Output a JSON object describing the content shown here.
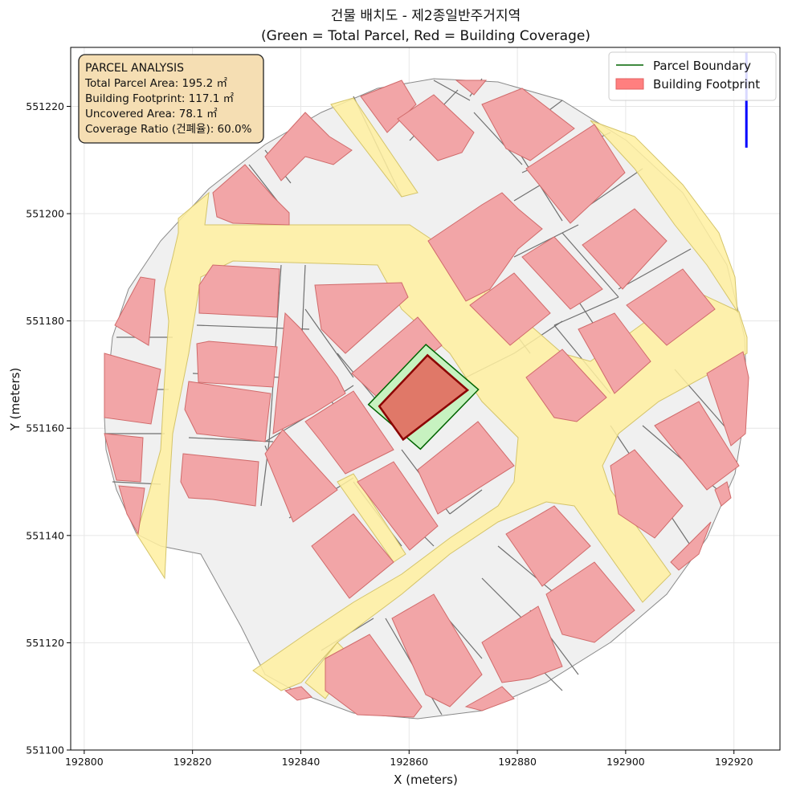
{
  "chart_data": {
    "type": "map",
    "title": "건물 배치도 - 제2종일반주거지역",
    "subtitle": "(Green = Total Parcel, Red = Building Coverage)",
    "xlabel": "X (meters)",
    "ylabel": "Y (meters)",
    "xlim": [
      192797.5,
      192928.5
    ],
    "ylim": [
      551100,
      551231
    ],
    "x_ticks": [
      192800,
      192820,
      192840,
      192860,
      192880,
      192900,
      192920
    ],
    "y_ticks": [
      551100,
      551120,
      551140,
      551160,
      551180,
      551200,
      551220
    ],
    "grid": true,
    "legend_position": "top-right",
    "legend": [
      {
        "label": "Parcel Boundary",
        "color": "#006400",
        "kind": "line"
      },
      {
        "label": "Building Footprint",
        "color": "#ff7f7f",
        "kind": "patch"
      }
    ],
    "info_box": {
      "title": "PARCEL ANALYSIS",
      "lines": [
        "Total Parcel Area: 195.2 ㎡",
        "Building Footprint: 117.1 ㎡",
        "Uncovered Area: 78.1 ㎡",
        "Coverage Ratio (건폐율): 60.0%"
      ]
    },
    "target_parcel": [
      [
        192852.5,
        551164.4
      ],
      [
        192863.1,
        551175.6
      ],
      [
        192872.8,
        551167.2
      ],
      [
        192862.1,
        551156.1
      ]
    ],
    "target_building": [
      [
        192854.5,
        551164.1
      ],
      [
        192863.4,
        551173.6
      ],
      [
        192870.8,
        551167.1
      ],
      [
        192858.9,
        551157.9
      ]
    ],
    "north_arrow": {
      "x": 192922.3,
      "y_start": 551212.3,
      "y_end": 551230.0
    },
    "colors": {
      "road": "#fff0a0",
      "road_edge": "#d4c46a",
      "lot": "#f0f0f0",
      "lot_edge": "#707070",
      "building": "#f2a5a7",
      "building_edge": "#d06a6a",
      "target_parcel_fill": "#c7f2c0",
      "target_parcel_edge": "#006400",
      "target_building_fill": "#e07868",
      "target_building_edge": "#8b0000",
      "north_arrow": "#0000ff"
    }
  }
}
